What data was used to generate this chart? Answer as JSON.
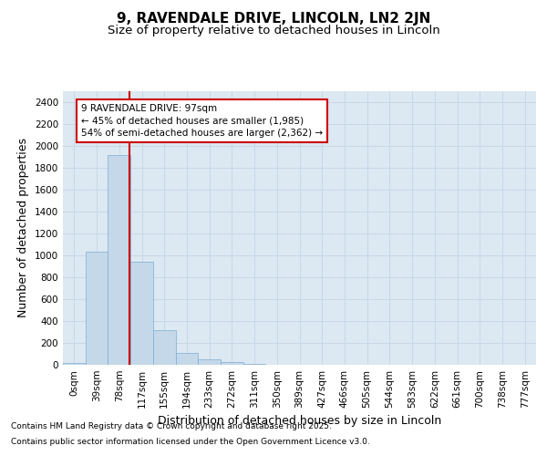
{
  "title1": "9, RAVENDALE DRIVE, LINCOLN, LN2 2JN",
  "title2": "Size of property relative to detached houses in Lincoln",
  "xlabel": "Distribution of detached houses by size in Lincoln",
  "ylabel": "Number of detached properties",
  "bar_color": "#c5d8ea",
  "bar_edge_color": "#7aaed0",
  "grid_color": "#c8d8e8",
  "background_color": "#ffffff",
  "plot_bg_color": "#dce8f2",
  "categories": [
    "0sqm",
    "39sqm",
    "78sqm",
    "117sqm",
    "155sqm",
    "194sqm",
    "233sqm",
    "272sqm",
    "311sqm",
    "350sqm",
    "389sqm",
    "427sqm",
    "466sqm",
    "505sqm",
    "544sqm",
    "583sqm",
    "622sqm",
    "661sqm",
    "700sqm",
    "738sqm",
    "777sqm"
  ],
  "bar_values": [
    20,
    1030,
    1920,
    940,
    320,
    105,
    50,
    25,
    10,
    3,
    1,
    0,
    0,
    0,
    0,
    0,
    0,
    0,
    0,
    0,
    0
  ],
  "ylim": [
    0,
    2500
  ],
  "yticks": [
    0,
    200,
    400,
    600,
    800,
    1000,
    1200,
    1400,
    1600,
    1800,
    2000,
    2200,
    2400
  ],
  "vline_x": 2.47,
  "vline_color": "#cc0000",
  "annotation_text": "9 RAVENDALE DRIVE: 97sqm\n← 45% of detached houses are smaller (1,985)\n54% of semi-detached houses are larger (2,362) →",
  "annotation_box_color": "#ffffff",
  "annotation_box_edge": "#cc0000",
  "footnote1": "Contains HM Land Registry data © Crown copyright and database right 2025.",
  "footnote2": "Contains public sector information licensed under the Open Government Licence v3.0.",
  "title1_fontsize": 11,
  "title2_fontsize": 9.5,
  "axis_label_fontsize": 9,
  "tick_fontsize": 7.5,
  "annotation_fontsize": 7.5,
  "footnote_fontsize": 6.5
}
